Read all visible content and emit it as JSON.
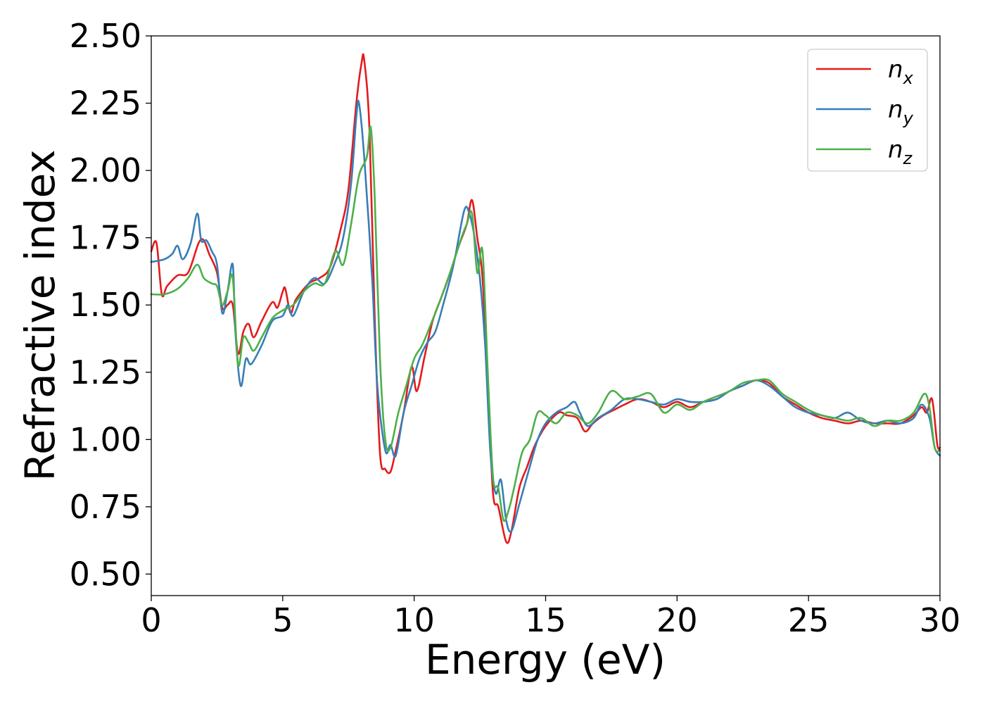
{
  "chart_data": {
    "type": "line",
    "title": "",
    "xlabel": "Energy (eV)",
    "ylabel": "Refractive index",
    "xlim": [
      0,
      30
    ],
    "ylim": [
      0.42,
      2.5
    ],
    "xticks": [
      0,
      5,
      10,
      15,
      20,
      25,
      30
    ],
    "xtick_labels": [
      "0",
      "5",
      "10",
      "15",
      "20",
      "25",
      "30"
    ],
    "yticks": [
      0.5,
      0.75,
      1.0,
      1.25,
      1.5,
      1.75,
      2.0,
      2.25,
      2.5
    ],
    "ytick_labels": [
      "0.50",
      "0.75",
      "1.00",
      "1.25",
      "1.50",
      "1.75",
      "2.00",
      "2.25",
      "2.50"
    ],
    "grid": false,
    "legend_position": "top-right",
    "series": [
      {
        "name": "n",
        "subscript": "x",
        "color": "#e41a1c",
        "points": [
          [
            0,
            1.7
          ],
          [
            0.2,
            1.73
          ],
          [
            0.4,
            1.54
          ],
          [
            0.6,
            1.57
          ],
          [
            1.0,
            1.61
          ],
          [
            1.4,
            1.62
          ],
          [
            1.8,
            1.73
          ],
          [
            2.0,
            1.74
          ],
          [
            2.2,
            1.69
          ],
          [
            2.5,
            1.62
          ],
          [
            2.7,
            1.49
          ],
          [
            2.9,
            1.5
          ],
          [
            3.1,
            1.5
          ],
          [
            3.3,
            1.32
          ],
          [
            3.5,
            1.4
          ],
          [
            3.7,
            1.43
          ],
          [
            3.9,
            1.38
          ],
          [
            4.2,
            1.44
          ],
          [
            4.6,
            1.51
          ],
          [
            4.8,
            1.49
          ],
          [
            5.0,
            1.55
          ],
          [
            5.1,
            1.56
          ],
          [
            5.3,
            1.47
          ],
          [
            5.5,
            1.52
          ],
          [
            6.0,
            1.58
          ],
          [
            6.4,
            1.6
          ],
          [
            6.8,
            1.64
          ],
          [
            7.2,
            1.78
          ],
          [
            7.5,
            1.93
          ],
          [
            7.8,
            2.25
          ],
          [
            8.0,
            2.4
          ],
          [
            8.1,
            2.41
          ],
          [
            8.3,
            2.15
          ],
          [
            8.5,
            1.45
          ],
          [
            8.7,
            0.95
          ],
          [
            8.9,
            0.89
          ],
          [
            9.1,
            0.88
          ],
          [
            9.3,
            0.96
          ],
          [
            9.6,
            1.1
          ],
          [
            9.9,
            1.27
          ],
          [
            10.1,
            1.18
          ],
          [
            10.4,
            1.31
          ],
          [
            10.7,
            1.44
          ],
          [
            11.0,
            1.52
          ],
          [
            11.3,
            1.6
          ],
          [
            11.7,
            1.72
          ],
          [
            12.0,
            1.8
          ],
          [
            12.2,
            1.89
          ],
          [
            12.4,
            1.75
          ],
          [
            12.6,
            1.6
          ],
          [
            12.8,
            1.2
          ],
          [
            13.0,
            0.8
          ],
          [
            13.2,
            0.75
          ],
          [
            13.5,
            0.62
          ],
          [
            13.7,
            0.66
          ],
          [
            14.0,
            0.82
          ],
          [
            14.3,
            0.9
          ],
          [
            14.6,
            0.98
          ],
          [
            15.0,
            1.05
          ],
          [
            15.5,
            1.1
          ],
          [
            15.8,
            1.09
          ],
          [
            16.2,
            1.08
          ],
          [
            16.5,
            1.03
          ],
          [
            16.8,
            1.06
          ],
          [
            17.2,
            1.09
          ],
          [
            17.6,
            1.11
          ],
          [
            18.0,
            1.13
          ],
          [
            18.5,
            1.15
          ],
          [
            19.0,
            1.14
          ],
          [
            19.5,
            1.12
          ],
          [
            20.0,
            1.14
          ],
          [
            20.5,
            1.12
          ],
          [
            21.0,
            1.14
          ],
          [
            21.5,
            1.15
          ],
          [
            22.0,
            1.18
          ],
          [
            22.5,
            1.2
          ],
          [
            23.0,
            1.22
          ],
          [
            23.5,
            1.21
          ],
          [
            24.0,
            1.16
          ],
          [
            24.5,
            1.13
          ],
          [
            25.0,
            1.1
          ],
          [
            25.5,
            1.08
          ],
          [
            26.0,
            1.07
          ],
          [
            26.5,
            1.06
          ],
          [
            27.0,
            1.07
          ],
          [
            27.5,
            1.06
          ],
          [
            28.0,
            1.06
          ],
          [
            28.5,
            1.06
          ],
          [
            29.0,
            1.09
          ],
          [
            29.3,
            1.12
          ],
          [
            29.5,
            1.1
          ],
          [
            29.7,
            1.15
          ],
          [
            29.9,
            0.98
          ],
          [
            30.0,
            0.97
          ]
        ]
      },
      {
        "name": "n",
        "subscript": "y",
        "color": "#377eb8",
        "points": [
          [
            0,
            1.66
          ],
          [
            0.5,
            1.67
          ],
          [
            0.8,
            1.69
          ],
          [
            1.0,
            1.72
          ],
          [
            1.2,
            1.67
          ],
          [
            1.5,
            1.73
          ],
          [
            1.75,
            1.84
          ],
          [
            1.9,
            1.74
          ],
          [
            2.1,
            1.74
          ],
          [
            2.3,
            1.7
          ],
          [
            2.5,
            1.65
          ],
          [
            2.7,
            1.47
          ],
          [
            2.9,
            1.55
          ],
          [
            3.1,
            1.65
          ],
          [
            3.2,
            1.4
          ],
          [
            3.4,
            1.2
          ],
          [
            3.6,
            1.3
          ],
          [
            3.8,
            1.28
          ],
          [
            4.2,
            1.35
          ],
          [
            4.6,
            1.44
          ],
          [
            5.0,
            1.46
          ],
          [
            5.2,
            1.5
          ],
          [
            5.4,
            1.46
          ],
          [
            5.8,
            1.55
          ],
          [
            6.2,
            1.6
          ],
          [
            6.6,
            1.58
          ],
          [
            7.0,
            1.66
          ],
          [
            7.3,
            1.75
          ],
          [
            7.6,
            1.95
          ],
          [
            7.8,
            2.2
          ],
          [
            7.9,
            2.25
          ],
          [
            8.1,
            2.05
          ],
          [
            8.4,
            1.6
          ],
          [
            8.6,
            1.2
          ],
          [
            8.9,
            0.96
          ],
          [
            9.1,
            0.98
          ],
          [
            9.3,
            0.94
          ],
          [
            9.6,
            1.1
          ],
          [
            9.9,
            1.2
          ],
          [
            10.2,
            1.3
          ],
          [
            10.5,
            1.36
          ],
          [
            10.8,
            1.4
          ],
          [
            11.1,
            1.5
          ],
          [
            11.5,
            1.65
          ],
          [
            11.9,
            1.85
          ],
          [
            12.1,
            1.84
          ],
          [
            12.3,
            1.75
          ],
          [
            12.5,
            1.6
          ],
          [
            12.7,
            1.35
          ],
          [
            12.9,
            0.95
          ],
          [
            13.1,
            0.8
          ],
          [
            13.3,
            0.85
          ],
          [
            13.5,
            0.7
          ],
          [
            13.7,
            0.66
          ],
          [
            14.0,
            0.76
          ],
          [
            14.4,
            0.9
          ],
          [
            14.7,
            1.0
          ],
          [
            15.0,
            1.06
          ],
          [
            15.4,
            1.1
          ],
          [
            15.8,
            1.12
          ],
          [
            16.1,
            1.14
          ],
          [
            16.3,
            1.1
          ],
          [
            16.6,
            1.05
          ],
          [
            17.0,
            1.08
          ],
          [
            17.5,
            1.11
          ],
          [
            18.0,
            1.15
          ],
          [
            18.5,
            1.15
          ],
          [
            19.0,
            1.14
          ],
          [
            19.5,
            1.13
          ],
          [
            20.0,
            1.15
          ],
          [
            20.5,
            1.14
          ],
          [
            21.0,
            1.14
          ],
          [
            21.5,
            1.15
          ],
          [
            22.0,
            1.18
          ],
          [
            22.5,
            1.2
          ],
          [
            23.0,
            1.22
          ],
          [
            23.5,
            1.2
          ],
          [
            24.0,
            1.16
          ],
          [
            24.5,
            1.12
          ],
          [
            25.0,
            1.1
          ],
          [
            25.5,
            1.09
          ],
          [
            26.0,
            1.08
          ],
          [
            26.5,
            1.1
          ],
          [
            27.0,
            1.07
          ],
          [
            27.5,
            1.06
          ],
          [
            28.0,
            1.07
          ],
          [
            28.5,
            1.06
          ],
          [
            29.0,
            1.08
          ],
          [
            29.3,
            1.13
          ],
          [
            29.6,
            1.08
          ],
          [
            29.8,
            0.97
          ],
          [
            30.0,
            0.94
          ]
        ]
      },
      {
        "name": "n",
        "subscript": "z",
        "color": "#4daf4a",
        "points": [
          [
            0,
            1.54
          ],
          [
            0.5,
            1.54
          ],
          [
            1.0,
            1.56
          ],
          [
            1.4,
            1.6
          ],
          [
            1.75,
            1.65
          ],
          [
            2.0,
            1.6
          ],
          [
            2.3,
            1.58
          ],
          [
            2.5,
            1.57
          ],
          [
            2.7,
            1.5
          ],
          [
            2.9,
            1.55
          ],
          [
            3.1,
            1.6
          ],
          [
            3.3,
            1.28
          ],
          [
            3.5,
            1.38
          ],
          [
            3.7,
            1.36
          ],
          [
            3.9,
            1.33
          ],
          [
            4.2,
            1.38
          ],
          [
            4.6,
            1.45
          ],
          [
            5.0,
            1.48
          ],
          [
            5.4,
            1.5
          ],
          [
            5.8,
            1.55
          ],
          [
            6.2,
            1.58
          ],
          [
            6.6,
            1.58
          ],
          [
            7.0,
            1.7
          ],
          [
            7.3,
            1.65
          ],
          [
            7.6,
            1.8
          ],
          [
            7.9,
            1.98
          ],
          [
            8.2,
            2.05
          ],
          [
            8.35,
            2.16
          ],
          [
            8.5,
            1.9
          ],
          [
            8.7,
            1.3
          ],
          [
            8.9,
            1.0
          ],
          [
            9.1,
            0.97
          ],
          [
            9.4,
            1.1
          ],
          [
            9.7,
            1.2
          ],
          [
            10.0,
            1.3
          ],
          [
            10.3,
            1.35
          ],
          [
            10.6,
            1.42
          ],
          [
            11.0,
            1.52
          ],
          [
            11.4,
            1.63
          ],
          [
            11.8,
            1.75
          ],
          [
            12.0,
            1.8
          ],
          [
            12.2,
            1.84
          ],
          [
            12.4,
            1.62
          ],
          [
            12.6,
            1.7
          ],
          [
            12.8,
            1.25
          ],
          [
            13.0,
            0.86
          ],
          [
            13.2,
            0.82
          ],
          [
            13.4,
            0.7
          ],
          [
            13.6,
            0.74
          ],
          [
            13.8,
            0.82
          ],
          [
            14.1,
            0.95
          ],
          [
            14.4,
            1.0
          ],
          [
            14.7,
            1.1
          ],
          [
            15.0,
            1.09
          ],
          [
            15.4,
            1.06
          ],
          [
            15.8,
            1.1
          ],
          [
            16.2,
            1.09
          ],
          [
            16.6,
            1.06
          ],
          [
            17.0,
            1.1
          ],
          [
            17.5,
            1.18
          ],
          [
            18.0,
            1.15
          ],
          [
            18.5,
            1.16
          ],
          [
            19.0,
            1.17
          ],
          [
            19.5,
            1.1
          ],
          [
            20.0,
            1.13
          ],
          [
            20.5,
            1.11
          ],
          [
            21.0,
            1.14
          ],
          [
            21.5,
            1.16
          ],
          [
            22.0,
            1.18
          ],
          [
            22.5,
            1.21
          ],
          [
            23.0,
            1.22
          ],
          [
            23.5,
            1.22
          ],
          [
            24.0,
            1.17
          ],
          [
            24.5,
            1.14
          ],
          [
            25.0,
            1.11
          ],
          [
            25.5,
            1.09
          ],
          [
            26.0,
            1.08
          ],
          [
            26.5,
            1.07
          ],
          [
            27.0,
            1.08
          ],
          [
            27.5,
            1.05
          ],
          [
            28.0,
            1.07
          ],
          [
            28.5,
            1.07
          ],
          [
            29.0,
            1.1
          ],
          [
            29.4,
            1.17
          ],
          [
            29.6,
            1.12
          ],
          [
            29.8,
            0.97
          ],
          [
            30.0,
            0.96
          ]
        ]
      }
    ]
  }
}
